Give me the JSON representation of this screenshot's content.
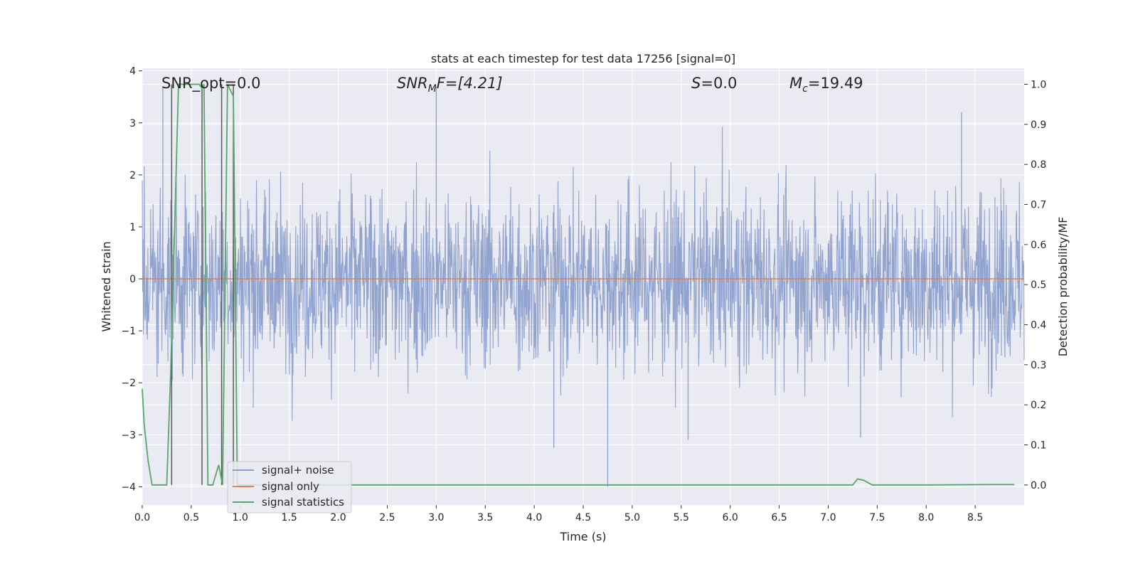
{
  "chart_data": {
    "type": "line",
    "title": "stats at each timestep for test data 17256 [signal=0]",
    "xlabel": "Time (s)",
    "ylabel": "Whitened strain",
    "y2label": "Detection probability/MF",
    "xlim": [
      0.0,
      9.0
    ],
    "ylim": [
      -4.35,
      4.05
    ],
    "y2lim": [
      -0.05,
      1.04
    ],
    "x_ticks": [
      0.0,
      0.5,
      1.0,
      1.5,
      2.0,
      2.5,
      3.0,
      3.5,
      4.0,
      4.5,
      5.0,
      5.5,
      6.0,
      6.5,
      7.0,
      7.5,
      8.0,
      8.5
    ],
    "x_tick_labels": [
      "0.0",
      "0.5",
      "1.0",
      "1.5",
      "2.0",
      "2.5",
      "3.0",
      "3.5",
      "4.0",
      "4.5",
      "5.0",
      "5.5",
      "6.0",
      "6.5",
      "7.0",
      "7.5",
      "8.0",
      "8.5"
    ],
    "y_ticks": [
      -4,
      -3,
      -2,
      -1,
      0,
      1,
      2,
      3,
      4
    ],
    "y_tick_labels": [
      "−4",
      "−3",
      "−2",
      "−1",
      "0",
      "1",
      "2",
      "3",
      "4"
    ],
    "y2_ticks": [
      0.0,
      0.1,
      0.2,
      0.3,
      0.4,
      0.5,
      0.6,
      0.7,
      0.8,
      0.9,
      1.0
    ],
    "y2_tick_labels": [
      "0.0",
      "0.1",
      "0.2",
      "0.3",
      "0.4",
      "0.5",
      "0.6",
      "0.7",
      "0.8",
      "0.9",
      "1.0"
    ],
    "grid": true,
    "legend_position": "lower-left",
    "annotations": {
      "snr_opt": "SNR_opt=0.0",
      "snr_mf_base": "SNR",
      "snr_mf_sub": "M",
      "snr_mf_rest": "F=[4.21]",
      "s_base": "S",
      "s_rest": "=0.0",
      "mc_base": "M",
      "mc_sub": "c",
      "mc_rest": "=19.49"
    },
    "series": [
      {
        "name": "signal+ noise",
        "color": "#8c9fcc",
        "noise_amplitude_range": [
          -4.0,
          3.7
        ],
        "notable_spikes": [
          [
            0.21,
            3.7
          ],
          [
            3.0,
            3.7
          ],
          [
            8.36,
            3.2
          ],
          [
            4.75,
            -4.0
          ],
          [
            4.2,
            -3.25
          ],
          [
            5.57,
            -3.1
          ],
          [
            7.33,
            -3.05
          ]
        ]
      },
      {
        "name": "signal only",
        "color": "#dd8452",
        "x": [
          0.0,
          9.0
        ],
        "y": [
          0.0,
          0.0
        ]
      },
      {
        "name": "signal statistics",
        "color": "#55a868",
        "axis": "right",
        "x": [
          0.0,
          0.02,
          0.06,
          0.1,
          0.15,
          0.25,
          0.29,
          0.37,
          0.5,
          0.58,
          0.61,
          0.63,
          0.67,
          0.72,
          0.78,
          0.82,
          0.87,
          0.93,
          0.97,
          1.1,
          2.0,
          3.0,
          4.0,
          5.0,
          6.0,
          7.0,
          7.25,
          7.3,
          7.36,
          7.45,
          8.0,
          8.7,
          8.9
        ],
        "y": [
          0.24,
          0.15,
          0.06,
          0.0,
          0.0,
          0.0,
          0.28,
          1.0,
          1.0,
          1.0,
          0.99,
          1.0,
          0.0,
          0.0,
          0.05,
          0.0,
          1.0,
          0.97,
          0.0,
          0.0,
          0.0,
          0.0,
          0.0,
          0.0,
          0.0,
          0.0,
          0.0,
          0.015,
          0.012,
          0.0,
          0.0,
          0.001,
          0.001
        ]
      }
    ],
    "vertical_markers": {
      "color": "#5a5a5a",
      "x": [
        0.3,
        0.61,
        0.81,
        0.93
      ]
    },
    "legend": [
      {
        "label": "signal+ noise",
        "color": "#8c9fcc"
      },
      {
        "label": "signal only",
        "color": "#dd8452"
      },
      {
        "label": "signal statistics",
        "color": "#55a868"
      }
    ]
  }
}
